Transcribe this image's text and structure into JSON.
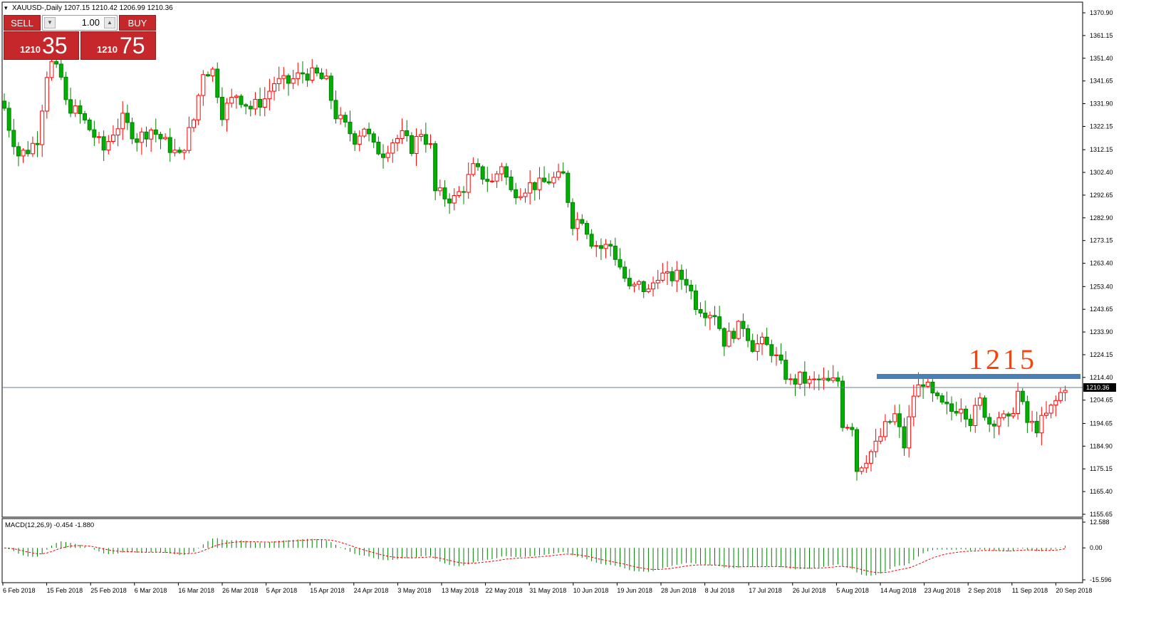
{
  "header": {
    "symbol_line": "XAUUSD-,Daily  1207.15 1210.42 1206.99 1210.36"
  },
  "trade_panel": {
    "sell_label": "SELL",
    "buy_label": "BUY",
    "lot_value": "1.00",
    "sell_price_small": "1210",
    "sell_price_big": "35",
    "buy_price_small": "1210",
    "buy_price_big": "75"
  },
  "annotation": {
    "text": "1215",
    "level": 1215,
    "color": "#ff4000",
    "line_color": "#4a7fb5"
  },
  "colors": {
    "bull": "#ff0000",
    "bear": "#008000",
    "bear_fill": "#00b000",
    "macd_signal": "#ff0000",
    "macd_hist": "#008000"
  },
  "price_axis": {
    "labels": [
      "1370.90",
      "1361.15",
      "1351.40",
      "1341.65",
      "1331.90",
      "1322.15",
      "1312.15",
      "1302.40",
      "1292.65",
      "1282.90",
      "1273.15",
      "1263.40",
      "1253.40",
      "1243.65",
      "1233.90",
      "1224.15",
      "1214.40",
      "1204.65",
      "1194.65",
      "1184.90",
      "1175.15",
      "1165.40",
      "1155.65"
    ],
    "current_price": "1210.36"
  },
  "macd": {
    "title": "MACD(12,26,9) -0.454 -1.880",
    "axis_labels": [
      "12.588",
      "0.00",
      "-15.596"
    ]
  },
  "time_axis": {
    "labels": [
      "6 Feb 2018",
      "15 Feb 2018",
      "25 Feb 2018",
      "6 Mar 2018",
      "16 Mar 2018",
      "26 Mar 2018",
      "5 Apr 2018",
      "15 Apr 2018",
      "24 Apr 2018",
      "3 May 2018",
      "13 May 2018",
      "22 May 2018",
      "31 May 2018",
      "10 Jun 2018",
      "19 Jun 2018",
      "28 Jun 2018",
      "8 Jul 2018",
      "17 Jul 2018",
      "26 Jul 2018",
      "5 Aug 2018",
      "14 Aug 2018",
      "23 Aug 2018",
      "2 Sep 2018",
      "11 Sep 2018",
      "20 Sep 2018"
    ]
  },
  "chart_data": {
    "type": "candlestick",
    "symbol": "XAUUSD",
    "timeframe": "Daily",
    "ylim": [
      1155.65,
      1370.9
    ],
    "horizontal_level": 1215,
    "current_price": 1210.36,
    "keypoints": [
      [
        0,
        1330
      ],
      [
        1,
        1322
      ],
      [
        3,
        1310
      ],
      [
        5,
        1312
      ],
      [
        7,
        1317
      ],
      [
        9,
        1345
      ],
      [
        10,
        1349
      ],
      [
        12,
        1343
      ],
      [
        13,
        1332
      ],
      [
        16,
        1327
      ],
      [
        19,
        1318
      ],
      [
        21,
        1312
      ],
      [
        23,
        1320
      ],
      [
        25,
        1325
      ],
      [
        28,
        1317
      ],
      [
        31,
        1321
      ],
      [
        34,
        1315
      ],
      [
        37,
        1309
      ],
      [
        40,
        1325
      ],
      [
        42,
        1346
      ],
      [
        44,
        1346
      ],
      [
        46,
        1328
      ],
      [
        49,
        1336
      ],
      [
        52,
        1330
      ],
      [
        55,
        1334
      ],
      [
        57,
        1341
      ],
      [
        60,
        1341
      ],
      [
        63,
        1345
      ],
      [
        66,
        1344
      ],
      [
        68,
        1341
      ],
      [
        70,
        1327
      ],
      [
        72,
        1322
      ],
      [
        74,
        1317
      ],
      [
        76,
        1322
      ],
      [
        78,
        1313
      ],
      [
        80,
        1311
      ],
      [
        82,
        1316
      ],
      [
        84,
        1318
      ],
      [
        86,
        1313
      ],
      [
        88,
        1320
      ],
      [
        90,
        1313
      ],
      [
        91,
        1294
      ],
      [
        93,
        1292
      ],
      [
        95,
        1291
      ],
      [
        97,
        1296
      ],
      [
        99,
        1304
      ],
      [
        101,
        1301
      ],
      [
        103,
        1298
      ],
      [
        105,
        1306
      ],
      [
        107,
        1294
      ],
      [
        109,
        1295
      ],
      [
        111,
        1297
      ],
      [
        113,
        1297
      ],
      [
        115,
        1299
      ],
      [
        117,
        1300
      ],
      [
        118,
        1301
      ],
      [
        120,
        1281
      ],
      [
        122,
        1283
      ],
      [
        124,
        1273
      ],
      [
        126,
        1270
      ],
      [
        128,
        1271
      ],
      [
        130,
        1262
      ],
      [
        132,
        1252
      ],
      [
        134,
        1254
      ],
      [
        136,
        1251
      ],
      [
        138,
        1259
      ],
      [
        140,
        1257
      ],
      [
        142,
        1258
      ],
      [
        144,
        1256
      ],
      [
        146,
        1246
      ],
      [
        148,
        1243
      ],
      [
        150,
        1242
      ],
      [
        152,
        1230
      ],
      [
        154,
        1234
      ],
      [
        156,
        1237
      ],
      [
        158,
        1228
      ],
      [
        160,
        1229
      ],
      [
        162,
        1226
      ],
      [
        164,
        1219
      ],
      [
        166,
        1212
      ],
      [
        168,
        1214
      ],
      [
        170,
        1212
      ],
      [
        172,
        1213
      ],
      [
        174,
        1212
      ],
      [
        176,
        1213
      ],
      [
        177,
        1195
      ],
      [
        179,
        1194
      ],
      [
        180,
        1175
      ],
      [
        182,
        1180
      ],
      [
        184,
        1185
      ],
      [
        186,
        1193
      ],
      [
        188,
        1198
      ],
      [
        190,
        1185
      ],
      [
        192,
        1207
      ],
      [
        194,
        1213
      ],
      [
        196,
        1206
      ],
      [
        198,
        1202
      ],
      [
        200,
        1200
      ],
      [
        202,
        1203
      ],
      [
        204,
        1196
      ],
      [
        206,
        1204
      ],
      [
        208,
        1195
      ],
      [
        210,
        1198
      ],
      [
        212,
        1195
      ],
      [
        214,
        1208
      ],
      [
        216,
        1195
      ],
      [
        218,
        1193
      ],
      [
        220,
        1198
      ],
      [
        222,
        1204
      ],
      [
        224,
        1211
      ]
    ],
    "macd_histogram_range": [
      -15.596,
      12.588
    ]
  }
}
